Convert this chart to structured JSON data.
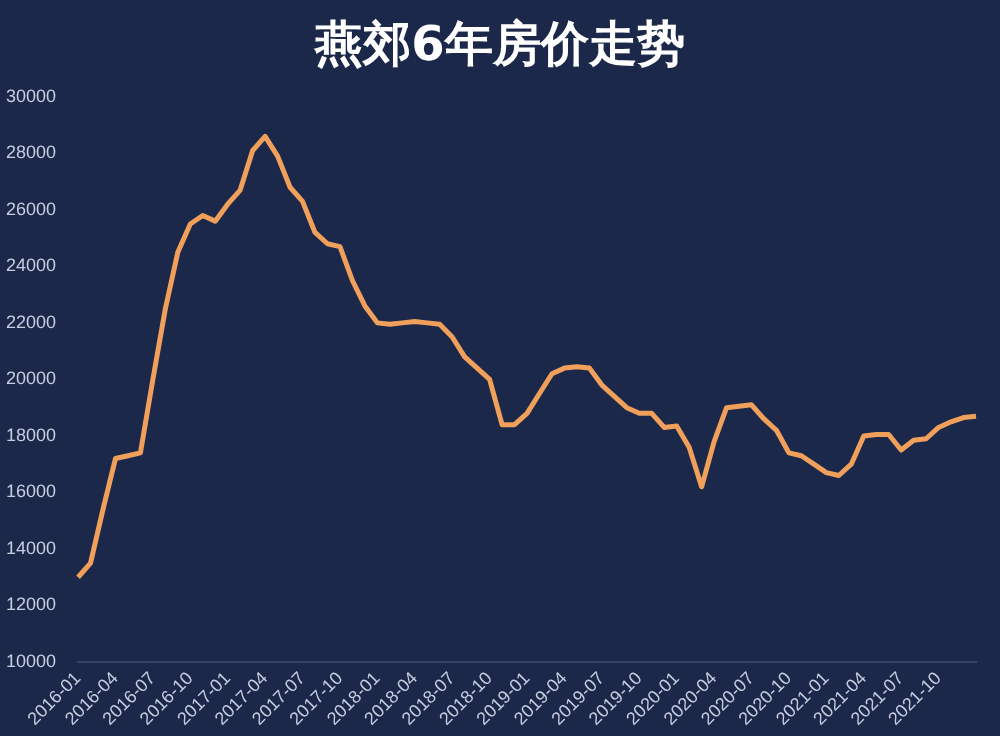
{
  "chart_data": {
    "type": "line",
    "title": "燕郊6年房价走势",
    "categories": [
      "2016-01",
      null,
      null,
      "2016-04",
      null,
      null,
      "2016-07",
      null,
      null,
      "2016-10",
      null,
      null,
      "2017-01",
      null,
      null,
      "2017-04",
      null,
      null,
      "2017-07",
      null,
      null,
      "2017-10",
      null,
      null,
      "2018-01",
      null,
      null,
      "2018-04",
      null,
      null,
      "2018-07",
      null,
      null,
      "2018-10",
      null,
      null,
      "2019-01",
      null,
      null,
      "2019-04",
      null,
      null,
      "2019-07",
      null,
      null,
      "2019-10",
      null,
      null,
      "2020-01",
      null,
      null,
      "2020-04",
      null,
      null,
      "2020-07",
      null,
      null,
      "2020-10",
      null,
      null,
      "2021-01",
      null,
      null,
      "2021-04",
      null,
      null,
      "2021-07",
      null,
      null,
      "2021-10",
      null,
      null,
      null
    ],
    "series": [
      {
        "color": "#f0a05a",
        "values": [
          13000,
          13500,
          15400,
          17200,
          17300,
          17400,
          20000,
          22500,
          24500,
          25500,
          25800,
          25600,
          26200,
          26700,
          28100,
          28600,
          27900,
          26800,
          26300,
          25200,
          24800,
          24700,
          23500,
          22600,
          22000,
          21950,
          22000,
          22050,
          22000,
          21950,
          21500,
          20800,
          20400,
          20000,
          18400,
          18400,
          18800,
          19500,
          20200,
          20400,
          20450,
          20400,
          19800,
          19400,
          19000,
          18800,
          18800,
          18300,
          18350,
          17600,
          16200,
          17800,
          19000,
          19050,
          19100,
          18600,
          18200,
          17400,
          17300,
          17000,
          16700,
          16600,
          17000,
          18000,
          18050,
          18050,
          17500,
          17850,
          17900,
          18300,
          18500,
          18650,
          18700
        ]
      }
    ],
    "ylim": [
      10000,
      30000
    ],
    "yticks": [
      10000,
      12000,
      14000,
      16000,
      18000,
      20000,
      22000,
      24000,
      26000,
      28000,
      30000
    ],
    "grid": false,
    "legend": false,
    "marker": "none",
    "line_style": "solid"
  }
}
